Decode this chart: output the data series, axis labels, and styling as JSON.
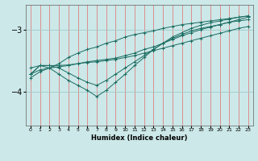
{
  "xlabel": "Humidex (Indice chaleur)",
  "ylabel": "",
  "bg_color": "#cce8e8",
  "line_color": "#1a6b60",
  "grid_color_v": "#e08080",
  "grid_color_h": "#a0c8c8",
  "xlim": [
    -0.5,
    23.5
  ],
  "ylim": [
    -4.55,
    -2.6
  ],
  "yticks": [
    -4,
    -3
  ],
  "xticks": [
    0,
    1,
    2,
    3,
    4,
    5,
    6,
    7,
    8,
    9,
    10,
    11,
    12,
    13,
    14,
    15,
    16,
    17,
    18,
    19,
    20,
    21,
    22,
    23
  ],
  "series": [
    {
      "x": [
        0,
        1,
        2,
        3,
        4,
        5,
        6,
        7,
        8,
        9,
        10,
        11,
        12,
        13,
        14,
        15,
        16,
        17,
        18,
        19,
        20,
        21,
        22,
        23
      ],
      "y": [
        -3.62,
        -3.58,
        -3.58,
        -3.58,
        -3.57,
        -3.55,
        -3.53,
        -3.52,
        -3.5,
        -3.48,
        -3.45,
        -3.42,
        -3.38,
        -3.34,
        -3.3,
        -3.26,
        -3.22,
        -3.18,
        -3.14,
        -3.1,
        -3.06,
        -3.02,
        -2.98,
        -2.95
      ]
    },
    {
      "x": [
        0,
        1,
        2,
        3,
        4,
        5,
        6,
        7,
        8,
        9,
        10,
        11,
        12,
        13,
        14,
        15,
        16,
        17,
        18,
        19,
        20,
        21,
        22,
        23
      ],
      "y": [
        -3.72,
        -3.65,
        -3.62,
        -3.6,
        -3.58,
        -3.55,
        -3.52,
        -3.5,
        -3.48,
        -3.46,
        -3.42,
        -3.38,
        -3.32,
        -3.28,
        -3.22,
        -3.16,
        -3.1,
        -3.05,
        -3.0,
        -2.96,
        -2.92,
        -2.88,
        -2.84,
        -2.8
      ]
    },
    {
      "x": [
        0,
        1,
        2,
        3,
        4,
        5,
        6,
        7,
        8,
        9,
        10,
        11,
        12,
        13,
        14,
        15,
        16,
        17,
        18,
        19,
        20,
        21,
        22,
        23
      ],
      "y": [
        -3.78,
        -3.68,
        -3.62,
        -3.55,
        -3.45,
        -3.38,
        -3.32,
        -3.28,
        -3.22,
        -3.18,
        -3.12,
        -3.08,
        -3.05,
        -3.02,
        -2.98,
        -2.95,
        -2.92,
        -2.9,
        -2.88,
        -2.86,
        -2.84,
        -2.82,
        -2.8,
        -2.78
      ]
    },
    {
      "x": [
        0,
        1,
        2,
        3,
        4,
        5,
        6,
        7,
        8,
        9,
        10,
        11,
        12,
        13,
        14,
        15,
        16,
        17,
        18,
        19,
        20,
        21,
        22,
        23
      ],
      "y": [
        -3.72,
        -3.58,
        -3.58,
        -3.62,
        -3.7,
        -3.78,
        -3.85,
        -3.9,
        -3.82,
        -3.72,
        -3.62,
        -3.52,
        -3.42,
        -3.32,
        -3.22,
        -3.14,
        -3.08,
        -3.02,
        -2.98,
        -2.95,
        -2.92,
        -2.88,
        -2.86,
        -2.84
      ]
    },
    {
      "x": [
        0,
        1,
        2,
        3,
        4,
        5,
        6,
        7,
        8,
        9,
        10,
        11,
        12,
        13,
        14,
        15,
        16,
        17,
        18,
        19,
        20,
        21,
        22,
        23
      ],
      "y": [
        -3.72,
        -3.58,
        -3.62,
        -3.72,
        -3.82,
        -3.9,
        -3.98,
        -4.08,
        -3.98,
        -3.85,
        -3.72,
        -3.58,
        -3.45,
        -3.32,
        -3.22,
        -3.12,
        -3.05,
        -2.98,
        -2.93,
        -2.89,
        -2.86,
        -2.83,
        -2.8,
        -2.78
      ]
    }
  ]
}
